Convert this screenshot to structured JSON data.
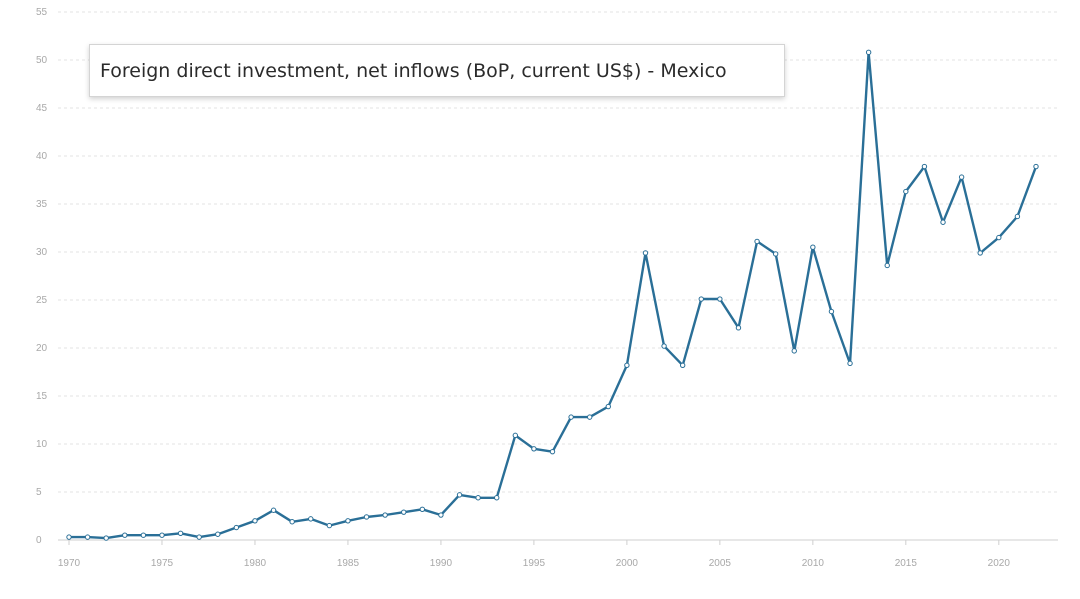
{
  "chart_data": {
    "type": "line",
    "title": "Foreign direct investment, net inflows (BoP, current US$) - Mexico",
    "x": [
      1970,
      1971,
      1972,
      1973,
      1974,
      1975,
      1976,
      1977,
      1978,
      1979,
      1980,
      1981,
      1982,
      1983,
      1984,
      1985,
      1986,
      1987,
      1988,
      1989,
      1990,
      1991,
      1992,
      1993,
      1994,
      1995,
      1996,
      1997,
      1998,
      1999,
      2000,
      2001,
      2002,
      2003,
      2004,
      2005,
      2006,
      2007,
      2008,
      2009,
      2010,
      2011,
      2012,
      2013,
      2014,
      2015,
      2016,
      2017,
      2018,
      2019,
      2020,
      2021,
      2022
    ],
    "series": [
      {
        "values": [
          0.3,
          0.3,
          0.2,
          0.5,
          0.5,
          0.5,
          0.7,
          0.3,
          0.6,
          1.3,
          2.0,
          3.1,
          1.9,
          2.2,
          1.5,
          2.0,
          2.4,
          2.6,
          2.9,
          3.2,
          2.6,
          4.7,
          4.4,
          4.4,
          10.9,
          9.5,
          9.2,
          12.8,
          12.8,
          13.9,
          18.2,
          29.9,
          20.2,
          18.2,
          25.1,
          25.1,
          22.1,
          31.1,
          29.8,
          19.7,
          30.5,
          23.8,
          18.4,
          50.8,
          28.6,
          36.3,
          38.9,
          33.1,
          37.8,
          29.9,
          31.5,
          33.7,
          38.9
        ]
      }
    ],
    "xlim": [
      1970,
      2022
    ],
    "ylim": [
      0,
      55
    ],
    "xticks": [
      1970,
      1975,
      1980,
      1985,
      1990,
      1995,
      2000,
      2005,
      2010,
      2015,
      2020
    ],
    "yticks": [
      0,
      5,
      10,
      15,
      20,
      25,
      30,
      35,
      40,
      45,
      50,
      55
    ],
    "grid": true,
    "line_color": "#2a6f97",
    "grid_color": "#e3e3e3"
  }
}
